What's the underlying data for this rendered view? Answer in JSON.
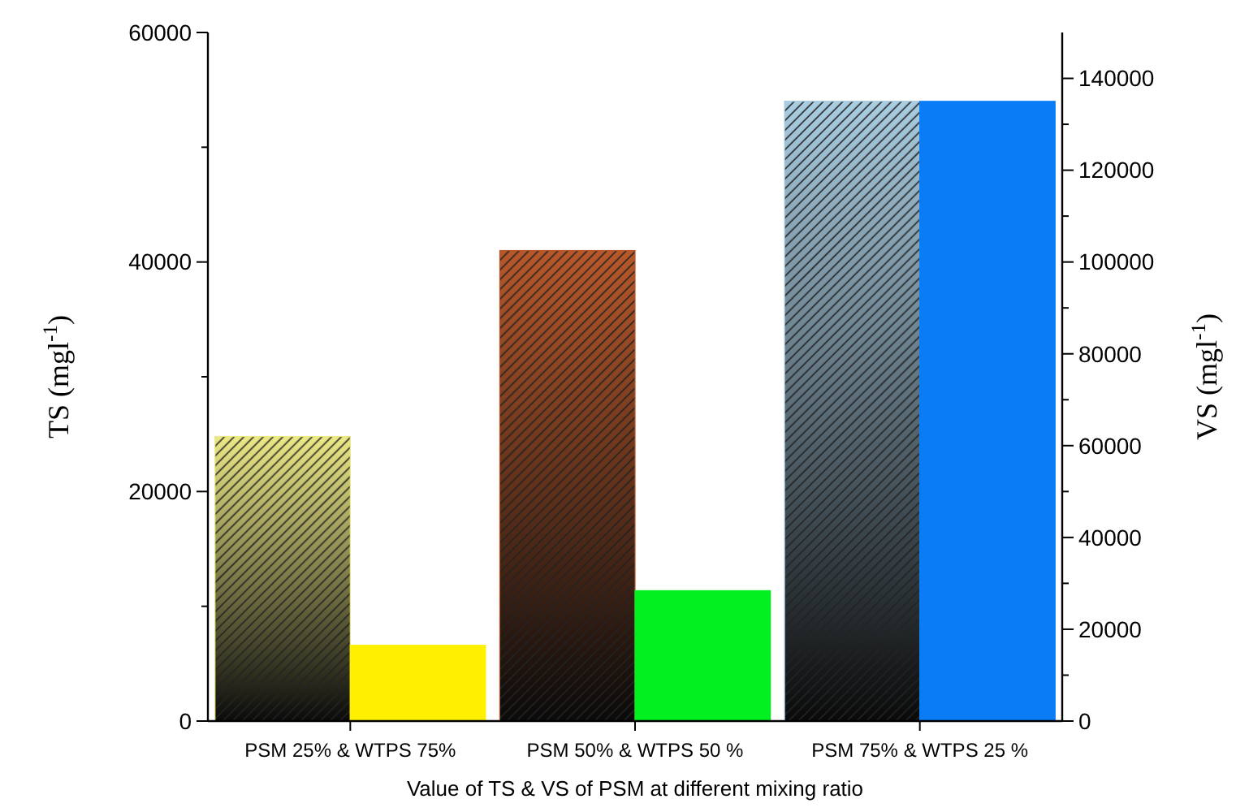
{
  "chart_data": {
    "type": "bar",
    "xlabel": "Value of TS & VS of PSM at different mixing ratio",
    "ylabel": "TS (mgl$^{-1}$)",
    "y2label": "VS (mgl$^{-1}$)",
    "categories": [
      "PSM 25% & WTPS 75%",
      "PSM 50% & WTPS 50 %",
      "PSM 75% & WTPS 25 %"
    ],
    "series": [
      {
        "values": [
          24800,
          41000,
          54000
        ],
        "colors": [
          "#ece986",
          "#b8582a",
          "#a9cde2"
        ]
      },
      {
        "values": [
          16500,
          28400,
          135000
        ],
        "colors": [
          "#fff000",
          "#00f020",
          "#0a7cf5"
        ],
        "axis": "y2"
      }
    ],
    "ylim": [
      0,
      60000
    ],
    "yticks": [
      0,
      {
        "value": 10000,
        "label": null
      },
      20000,
      {
        "value": 30000,
        "label": null
      },
      40000,
      {
        "value": 50000,
        "label": null
      },
      60000
    ],
    "y2lim": [
      0,
      150000
    ],
    "y2ticks": [
      0,
      {
        "value": 10000,
        "label": null
      },
      20000,
      {
        "value": 30000,
        "label": null
      },
      40000,
      {
        "value": 50000,
        "label": null
      },
      60000,
      {
        "value": 70000,
        "label": null
      },
      80000,
      {
        "value": 90000,
        "label": null
      },
      100000,
      {
        "value": 110000,
        "label": null
      },
      120000,
      {
        "value": 130000,
        "label": null
      },
      140000
    ],
    "grid": false
  }
}
